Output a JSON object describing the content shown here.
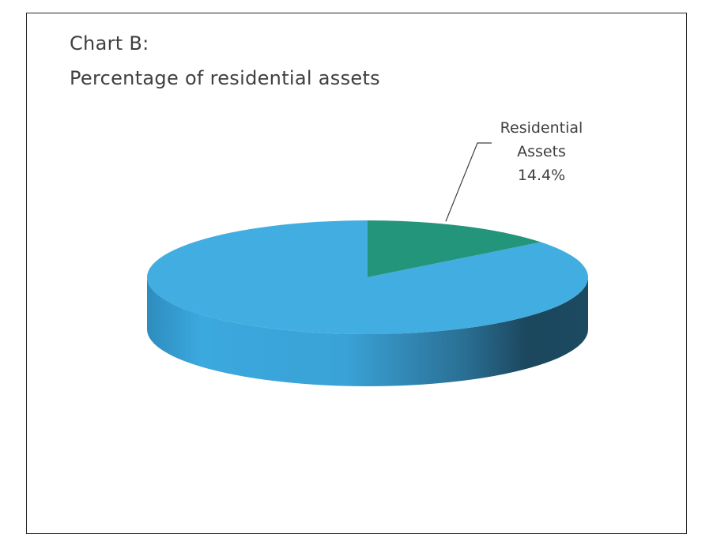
{
  "title": {
    "line1": "Chart B:",
    "line2": "Percentage of residential assets"
  },
  "chart_data": {
    "type": "pie",
    "title": "Chart B: Percentage of residential assets",
    "style": "3d",
    "categories": [
      "Residential Assets",
      ""
    ],
    "values": [
      14.4,
      85.6
    ],
    "slices": [
      {
        "name": "Residential Assets",
        "value": 14.4,
        "label_lines": [
          "Residential",
          "Assets",
          "14.4%"
        ],
        "color": "#23957A"
      },
      {
        "name": "",
        "value": 85.6,
        "color": "#41ADE1"
      }
    ],
    "legend": "none"
  },
  "colors": {
    "residential_top": "#23957A",
    "other_top": "#41ADE1",
    "side_light": "#3AA3D8",
    "side_dark": "#1C475E",
    "frame": "#262626",
    "text": "#404040"
  }
}
